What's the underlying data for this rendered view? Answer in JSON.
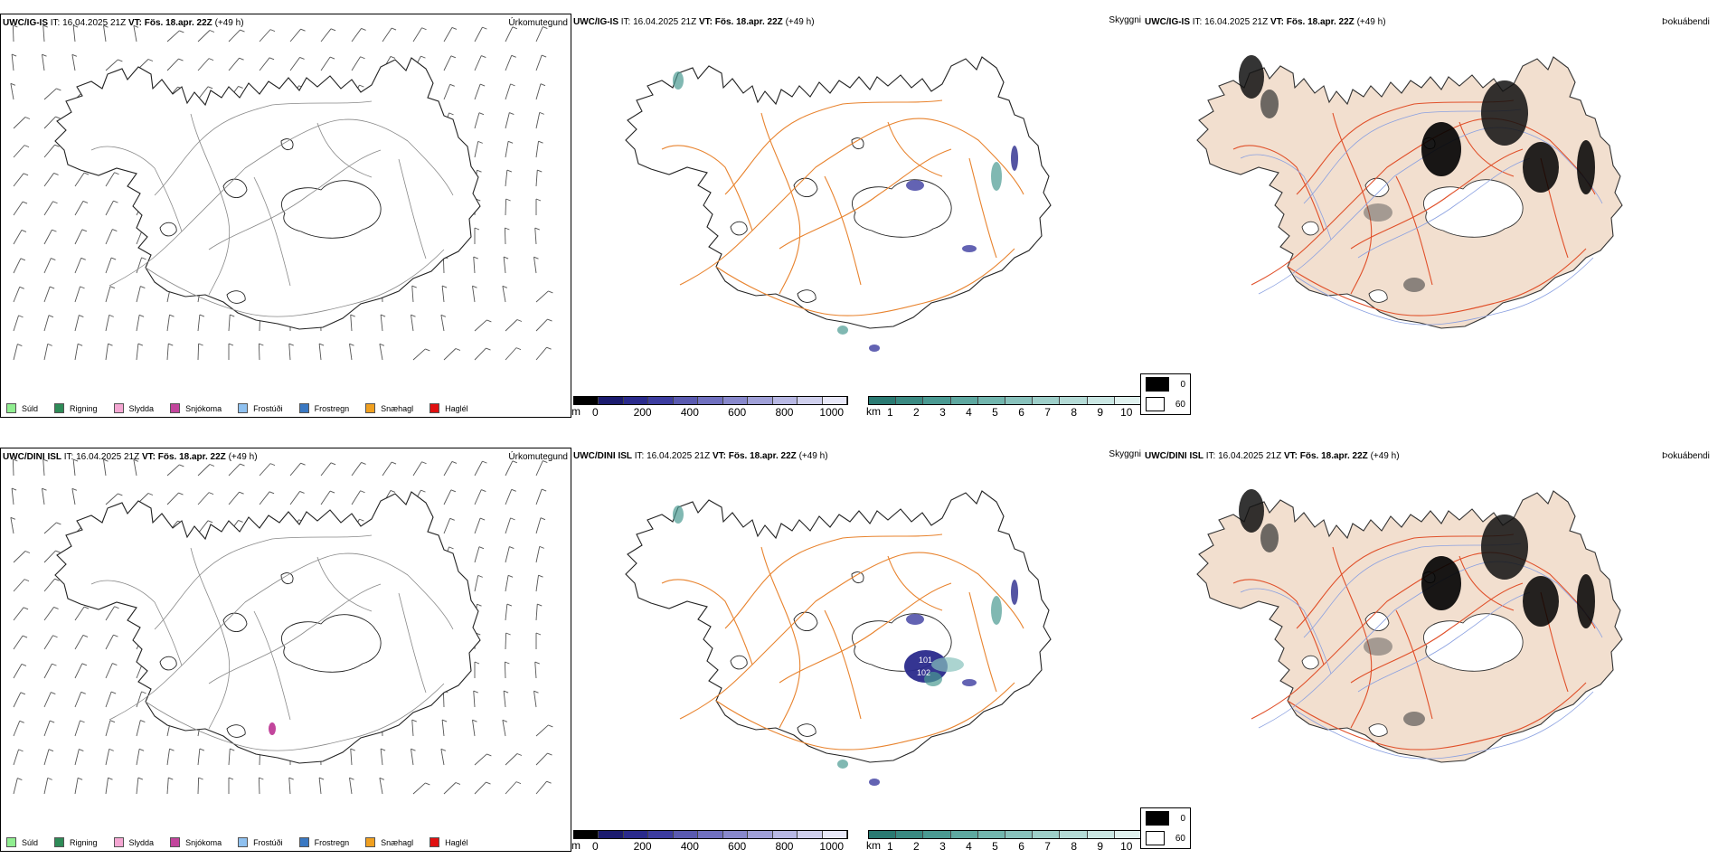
{
  "rows": [
    {
      "id": "top",
      "precip": {
        "model": "UWC/IG-IS",
        "it": "IT: 16.04.2025 21Z",
        "vt": "VT: Fös. 18.apr. 22Z",
        "lead": "(+49 h)",
        "right_label": "Úrkomutegund"
      },
      "vis": {
        "model": "UWC/IG-IS",
        "it": "IT: 16.04.2025 21Z",
        "vt": "VT: Fös. 18.apr. 22Z",
        "lead": "(+49 h)",
        "right_label": "Skyggni"
      },
      "fog": {
        "model": "UWC/IG-IS",
        "it": "IT: 16.04.2025 21Z",
        "vt": "VT: Fös. 18.apr. 22Z",
        "lead": "(+49 h)",
        "right_label": "Þokuábendi"
      }
    },
    {
      "id": "bottom",
      "precip": {
        "model": "UWC/DINI ISL",
        "it": "IT: 16.04.2025 21Z",
        "vt": "VT: Fös. 18.apr. 22Z",
        "lead": "(+49 h)",
        "right_label": "Úrkomutegund"
      },
      "vis": {
        "model": "UWC/DINI ISL",
        "it": "IT: 16.04.2025 21Z",
        "vt": "VT: Fös. 18.apr. 22Z",
        "lead": "(+49 h)",
        "right_label": "Skyggni",
        "labels": [
          "101",
          "102"
        ]
      },
      "fog": {
        "model": "UWC/DINI ISL",
        "it": "IT: 16.04.2025 21Z",
        "vt": "VT: Fös. 18.apr. 22Z",
        "lead": "(+49 h)",
        "right_label": "Þokuábendi"
      }
    }
  ],
  "precip_legend": [
    {
      "label": "Súld",
      "color": "#90ee90"
    },
    {
      "label": "Rigning",
      "color": "#2e8b57"
    },
    {
      "label": "Slydda",
      "color": "#f4a6d2"
    },
    {
      "label": "Snjókoma",
      "color": "#c2459c"
    },
    {
      "label": "Frostúði",
      "color": "#8fc1f0"
    },
    {
      "label": "Frostregn",
      "color": "#3a78c2"
    },
    {
      "label": "Snæhagl",
      "color": "#f0a020"
    },
    {
      "label": "Haglél",
      "color": "#e01010"
    }
  ],
  "scale_m": {
    "unit": "m",
    "ticks": [
      "0",
      "200",
      "400",
      "600",
      "800",
      "1000"
    ],
    "colors": [
      "#000000",
      "#1a1a6e",
      "#2a2a8c",
      "#3c3ca0",
      "#5a5ab0",
      "#7070c0",
      "#8888cc",
      "#a0a0d8",
      "#b8b8e4",
      "#d0d0ee",
      "#e8e8f8"
    ]
  },
  "scale_km": {
    "unit": "km",
    "ticks": [
      "1",
      "2",
      "3",
      "4",
      "5",
      "6",
      "7",
      "8",
      "9",
      "10"
    ],
    "colors": [
      "#2a7a72",
      "#3a8a82",
      "#4a9a92",
      "#5ea8a0",
      "#72b6ae",
      "#88c2bc",
      "#9ecfc9",
      "#b4dbd6",
      "#cae7e3",
      "#e0f2ef"
    ]
  },
  "fog_legend": [
    {
      "label": "0",
      "color": "#000000"
    },
    {
      "label": "60",
      "color": "#ffffff"
    }
  ]
}
